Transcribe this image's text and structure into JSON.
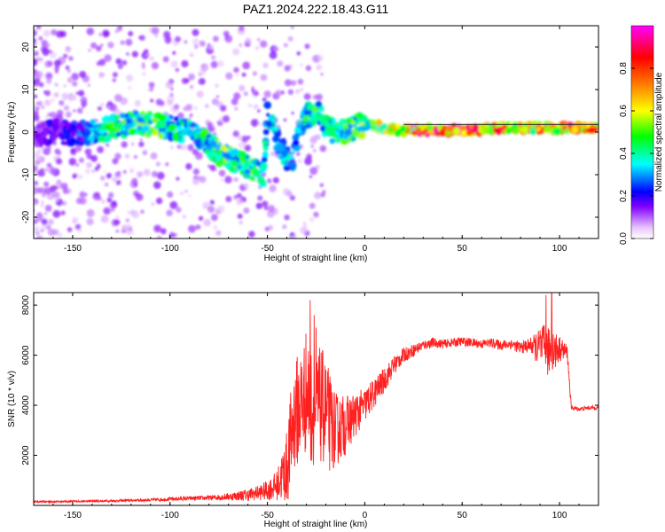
{
  "title": "PAZ1.2024.222.18.43.G11",
  "chart_data": [
    {
      "type": "heatmap",
      "xlabel": "Height of straight line (km)",
      "ylabel": "Frequency (Hz)",
      "xlim": [
        -170,
        120
      ],
      "ylim": [
        -25,
        25
      ],
      "xticks": [
        -150,
        -100,
        -50,
        0,
        50,
        100
      ],
      "yticks": [
        -20,
        -10,
        0,
        10,
        20
      ],
      "colorbar": {
        "label": "Normalized spectral amplitude",
        "range": [
          0,
          1
        ],
        "ticks": [
          0.0,
          0.2,
          0.4,
          0.6,
          0.8
        ],
        "tick_labels": [
          "0.0",
          "0.2",
          "0.4",
          "0.6",
          "0.8"
        ],
        "colors": [
          "#ffffff",
          "#e9c6ff",
          "#8000ff",
          "#0000ff",
          "#00ffff",
          "#00ff00",
          "#ffff00",
          "#ff8000",
          "#ff0000",
          "#ff00ff"
        ]
      },
      "ridge": {
        "x": [
          -170,
          -160,
          -150,
          -140,
          -130,
          -120,
          -110,
          -100,
          -90,
          -85,
          -80,
          -75,
          -70,
          -65,
          -60,
          -55,
          -52,
          -50,
          -47,
          -45,
          -42,
          -40,
          -38,
          -36,
          -34,
          -32,
          -30,
          -28,
          -25,
          -22,
          -20,
          -15,
          -10,
          -5,
          0,
          5,
          10,
          15,
          20,
          30,
          40,
          50,
          60,
          70,
          80,
          90,
          100,
          110,
          120
        ],
        "freq": [
          -1,
          0,
          -0.5,
          0,
          1,
          2,
          2,
          1,
          0,
          -1,
          -3,
          -5,
          -6,
          -7,
          -8,
          -9,
          -10,
          5,
          2,
          -2,
          -4,
          -6,
          -8,
          -5,
          0,
          2,
          4,
          4,
          5,
          3,
          1,
          0,
          0,
          1,
          2,
          1.5,
          1,
          0.5,
          0.5,
          0.5,
          0.5,
          0.5,
          0.5,
          1,
          1,
          1,
          1,
          1,
          1
        ],
        "amplitude": [
          0.15,
          0.2,
          0.25,
          0.35,
          0.5,
          0.5,
          0.55,
          0.45,
          0.4,
          0.45,
          0.5,
          0.55,
          0.55,
          0.5,
          0.5,
          0.5,
          0.45,
          0.4,
          0.4,
          0.3,
          0.35,
          0.35,
          0.3,
          0.4,
          0.4,
          0.45,
          0.5,
          0.4,
          0.5,
          0.4,
          0.45,
          0.5,
          0.55,
          0.5,
          0.55,
          0.6,
          0.65,
          0.75,
          0.9,
          0.9,
          0.9,
          0.9,
          0.85,
          0.85,
          0.8,
          0.8,
          0.85,
          0.85,
          0.9
        ]
      }
    },
    {
      "type": "line",
      "xlabel": "Height of straight line (km)",
      "ylabel": "SNR (10 * v/v)",
      "xlim": [
        -170,
        120
      ],
      "ylim": [
        0,
        8500
      ],
      "xticks": [
        -150,
        -100,
        -50,
        0,
        50,
        100
      ],
      "yticks": [
        2000,
        4000,
        6000,
        8000
      ],
      "color": "#ff2020",
      "series": [
        {
          "x": [
            -170,
            -160,
            -150,
            -140,
            -130,
            -120,
            -110,
            -100,
            -90,
            -80,
            -70,
            -60,
            -55,
            -50,
            -45,
            -40,
            -38,
            -36,
            -34,
            -32,
            -30,
            -28,
            -26,
            -24,
            -22,
            -20,
            -18,
            -15,
            -10,
            -5,
            0,
            5,
            10,
            15,
            20,
            25,
            30,
            35,
            40,
            45,
            50,
            55,
            60,
            65,
            70,
            75,
            80,
            85,
            90,
            92,
            94,
            96,
            98,
            100,
            102,
            104,
            106,
            110,
            115,
            120
          ],
          "values": [
            150,
            150,
            160,
            170,
            180,
            200,
            220,
            250,
            280,
            300,
            350,
            420,
            500,
            600,
            800,
            1500,
            2600,
            3600,
            3900,
            4100,
            4600,
            4100,
            3700,
            3900,
            4000,
            3700,
            3300,
            3000,
            3200,
            3600,
            4000,
            4500,
            5000,
            5600,
            6000,
            6200,
            6400,
            6500,
            6450,
            6500,
            6550,
            6500,
            6450,
            6500,
            6400,
            6450,
            6300,
            6400,
            6250,
            6350,
            6100,
            6300,
            6200,
            6250,
            6200,
            6100,
            3900,
            3850,
            3900,
            3900
          ],
          "noise": [
            40,
            40,
            40,
            40,
            50,
            50,
            60,
            70,
            80,
            100,
            150,
            250,
            300,
            400,
            600,
            1500,
            2000,
            2200,
            2300,
            2400,
            2500,
            2500,
            2400,
            2400,
            2300,
            2200,
            2000,
            1500,
            1200,
            900,
            700,
            600,
            500,
            400,
            300,
            250,
            200,
            200,
            180,
            180,
            180,
            180,
            180,
            180,
            200,
            220,
            250,
            300,
            800,
            900,
            1000,
            900,
            800,
            500,
            400,
            300,
            100,
            80,
            80,
            80
          ],
          "peaks": [
            [
              -28,
              8200
            ],
            [
              -26,
              7600
            ],
            [
              -25,
              7100
            ],
            [
              93,
              8400
            ],
            [
              96,
              8500
            ],
            [
              90,
              7000
            ]
          ]
        }
      ]
    }
  ]
}
